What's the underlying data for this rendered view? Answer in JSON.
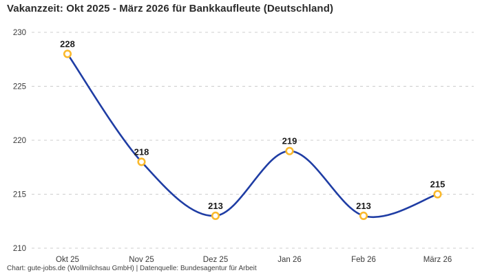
{
  "chart_data": {
    "type": "line",
    "title": "Vakanzzeit: Okt 2025 - März 2026 für Bankkaufleute (Deutschland)",
    "categories": [
      "Okt 25",
      "Nov 25",
      "Dez 25",
      "Jan 26",
      "Feb 26",
      "März 26"
    ],
    "values": [
      228,
      218,
      213,
      219,
      213,
      215
    ],
    "value_labels": [
      "228",
      "218",
      "213",
      "219",
      "213",
      "215"
    ],
    "xlabel": "",
    "ylabel": "",
    "ylim": [
      210,
      230
    ],
    "yticks": [
      210,
      215,
      220,
      225,
      230
    ],
    "grid": "horizontal-dashed",
    "legend": "none",
    "curve": "smooth",
    "colors": {
      "line": "#1f3da4",
      "marker_ring": "#fab92d",
      "marker_fill": "#ffffff",
      "grid": "#cccccc",
      "tick_label": "#3a3a3a",
      "value_label": "#1a1a1a"
    }
  },
  "footer": {
    "text": "Chart: gute-jobs.de (Wollmilchsau GmbH) | Datenquelle: Bundesagentur für Arbeit"
  }
}
